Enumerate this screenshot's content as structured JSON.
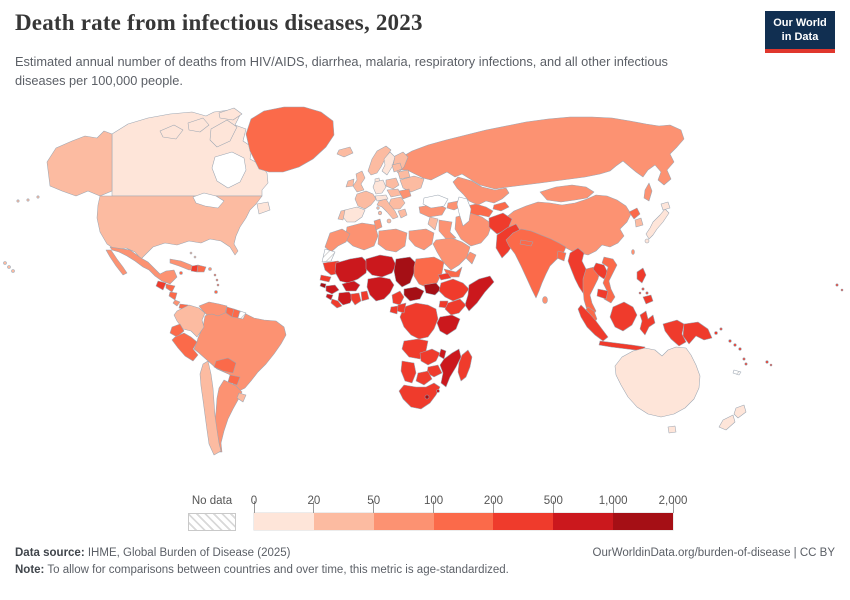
{
  "header": {
    "title": "Death rate from infectious diseases, 2023",
    "subtitle": "Estimated annual number of deaths from HIV/AIDS, diarrhea, malaria, respiratory infections, and all other infectious diseases per 100,000 people.",
    "logo": {
      "line1": "Our World",
      "line2": "in Data",
      "bg_color": "#112f51",
      "accent_color": "#e0372d"
    }
  },
  "legend": {
    "no_data_label": "No data",
    "tick_labels": [
      "0",
      "20",
      "50",
      "100",
      "200",
      "500",
      "1,000",
      "2,000"
    ],
    "colors": [
      "#fee5d9",
      "#fcbba1",
      "#fc9272",
      "#fb6a4a",
      "#ef3b2c",
      "#cb181d",
      "#a50f15"
    ]
  },
  "footer": {
    "source_label": "Data source:",
    "source_text": " IHME, Global Burden of Disease (2025)",
    "link_text": "OurWorldinData.org/burden-of-disease | CC BY",
    "note_label": "Note:",
    "note_text": " To allow for comparisons between countries and over time, this metric is age-standardized."
  },
  "chart_data": {
    "type": "heatmap",
    "subtype": "choropleth-world-map",
    "title": "Death rate from infectious diseases, 2023",
    "year": "2023",
    "unit": "deaths per 100,000 people",
    "legend_position": "bottom",
    "scale": {
      "bins": [
        {
          "range": "0–20",
          "color": "#fee5d9"
        },
        {
          "range": "20–50",
          "color": "#fcbba1"
        },
        {
          "range": "50–100",
          "color": "#fc9272"
        },
        {
          "range": "100–200",
          "color": "#fb6a4a"
        },
        {
          "range": "200–500",
          "color": "#ef3b2c"
        },
        {
          "range": "500–1,000",
          "color": "#cb181d"
        },
        {
          "range": "1,000–2,000",
          "color": "#a50f15"
        }
      ],
      "no_data": "hatched"
    },
    "regions": [
      {
        "id": "canada",
        "name": "Canada",
        "bin": 0
      },
      {
        "id": "usa",
        "name": "United States",
        "bin": 1
      },
      {
        "id": "greenland",
        "name": "Greenland",
        "bin": 3
      },
      {
        "id": "mexico",
        "name": "Mexico",
        "bin": 2
      },
      {
        "id": "guatemala",
        "name": "Guatemala",
        "bin": 4
      },
      {
        "id": "honduras",
        "name": "Honduras",
        "bin": 3
      },
      {
        "id": "nicaragua",
        "name": "Nicaragua",
        "bin": 3
      },
      {
        "id": "costa-rica",
        "name": "Costa Rica",
        "bin": 2
      },
      {
        "id": "panama",
        "name": "Panama",
        "bin": 3
      },
      {
        "id": "cuba",
        "name": "Cuba",
        "bin": 2
      },
      {
        "id": "jamaica",
        "name": "Jamaica",
        "bin": 3
      },
      {
        "id": "haiti",
        "name": "Haiti",
        "bin": 4
      },
      {
        "id": "dominican-republic",
        "name": "Dominican Republic",
        "bin": 3
      },
      {
        "id": "puerto-rico",
        "name": "Puerto Rico",
        "bin": 2
      },
      {
        "id": "bahamas",
        "name": "Bahamas",
        "bin": 1
      },
      {
        "id": "lesser-antilles",
        "name": "Lesser Antilles",
        "bin": 3
      },
      {
        "id": "trinidad",
        "name": "Trinidad and Tobago",
        "bin": 3
      },
      {
        "id": "colombia",
        "name": "Colombia",
        "bin": 1
      },
      {
        "id": "venezuela",
        "name": "Venezuela",
        "bin": 2
      },
      {
        "id": "guyana",
        "name": "Guyana",
        "bin": 3
      },
      {
        "id": "suriname",
        "name": "Suriname",
        "bin": 3
      },
      {
        "id": "french-guiana",
        "name": "French Guiana",
        "bin": -1
      },
      {
        "id": "ecuador",
        "name": "Ecuador",
        "bin": 3
      },
      {
        "id": "peru",
        "name": "Peru",
        "bin": 3
      },
      {
        "id": "brazil",
        "name": "Brazil",
        "bin": 2
      },
      {
        "id": "bolivia",
        "name": "Bolivia",
        "bin": 3
      },
      {
        "id": "paraguay",
        "name": "Paraguay",
        "bin": 3
      },
      {
        "id": "chile",
        "name": "Chile",
        "bin": 1
      },
      {
        "id": "argentina",
        "name": "Argentina",
        "bin": 2
      },
      {
        "id": "uruguay",
        "name": "Uruguay",
        "bin": 1
      },
      {
        "id": "iceland",
        "name": "Iceland",
        "bin": 1
      },
      {
        "id": "norway",
        "name": "Norway",
        "bin": 1
      },
      {
        "id": "sweden",
        "name": "Sweden",
        "bin": 0
      },
      {
        "id": "finland",
        "name": "Finland",
        "bin": 1
      },
      {
        "id": "denmark",
        "name": "Denmark",
        "bin": 0
      },
      {
        "id": "uk",
        "name": "United Kingdom",
        "bin": 1
      },
      {
        "id": "ireland",
        "name": "Ireland",
        "bin": 1
      },
      {
        "id": "france",
        "name": "France",
        "bin": 1
      },
      {
        "id": "spain",
        "name": "Spain",
        "bin": 0
      },
      {
        "id": "portugal",
        "name": "Portugal",
        "bin": 1
      },
      {
        "id": "germany",
        "name": "Germany",
        "bin": 0
      },
      {
        "id": "alpine",
        "name": "Switzerland and Austria",
        "bin": 0
      },
      {
        "id": "italy",
        "name": "Italy",
        "bin": 1
      },
      {
        "id": "poland",
        "name": "Poland",
        "bin": 1
      },
      {
        "id": "central-europe",
        "name": "Central Europe",
        "bin": 1
      },
      {
        "id": "balkans",
        "name": "Balkans",
        "bin": 1
      },
      {
        "id": "greece",
        "name": "Greece",
        "bin": 1
      },
      {
        "id": "romania",
        "name": "Romania",
        "bin": 2
      },
      {
        "id": "ukraine",
        "name": "Ukraine",
        "bin": 1
      },
      {
        "id": "belarus",
        "name": "Belarus",
        "bin": 1
      },
      {
        "id": "baltics",
        "name": "Baltic states",
        "bin": 1
      },
      {
        "id": "russia",
        "name": "Russia",
        "bin": 2
      },
      {
        "id": "kazakhstan",
        "name": "Kazakhstan",
        "bin": 2
      },
      {
        "id": "central-asia",
        "name": "Turkmenistan and Uzbekistan",
        "bin": 3
      },
      {
        "id": "kyrgyz-tajik",
        "name": "Kyrgyzstan and Tajikistan",
        "bin": 3
      },
      {
        "id": "caucasus",
        "name": "Caucasus",
        "bin": 2
      },
      {
        "id": "turkey",
        "name": "Turkey",
        "bin": 2
      },
      {
        "id": "levant",
        "name": "Levant",
        "bin": 1
      },
      {
        "id": "iraq",
        "name": "Iraq",
        "bin": 2
      },
      {
        "id": "iran",
        "name": "Iran",
        "bin": 2
      },
      {
        "id": "saudi-arabia",
        "name": "Saudi Arabia",
        "bin": 2
      },
      {
        "id": "yemen",
        "name": "Yemen",
        "bin": 3
      },
      {
        "id": "oman",
        "name": "Oman",
        "bin": 2
      },
      {
        "id": "afghanistan",
        "name": "Afghanistan",
        "bin": 4
      },
      {
        "id": "pakistan",
        "name": "Pakistan",
        "bin": 4
      },
      {
        "id": "india",
        "name": "India",
        "bin": 3
      },
      {
        "id": "nepal",
        "name": "Nepal",
        "bin": 3
      },
      {
        "id": "bangladesh",
        "name": "Bangladesh",
        "bin": 3
      },
      {
        "id": "sri-lanka",
        "name": "Sri Lanka",
        "bin": 2
      },
      {
        "id": "china",
        "name": "China",
        "bin": 2
      },
      {
        "id": "mongolia",
        "name": "Mongolia",
        "bin": 2
      },
      {
        "id": "north-korea",
        "name": "North Korea",
        "bin": 3
      },
      {
        "id": "south-korea",
        "name": "South Korea",
        "bin": 1
      },
      {
        "id": "japan",
        "name": "Japan",
        "bin": 0
      },
      {
        "id": "taiwan",
        "name": "Taiwan",
        "bin": 2
      },
      {
        "id": "myanmar",
        "name": "Myanmar",
        "bin": 4
      },
      {
        "id": "thailand",
        "name": "Thailand",
        "bin": 3
      },
      {
        "id": "laos",
        "name": "Laos",
        "bin": 4
      },
      {
        "id": "vietnam",
        "name": "Vietnam",
        "bin": 3
      },
      {
        "id": "cambodia",
        "name": "Cambodia",
        "bin": 4
      },
      {
        "id": "malaysia",
        "name": "Malaysia",
        "bin": 3
      },
      {
        "id": "indonesia",
        "name": "Indonesia",
        "bin": 4
      },
      {
        "id": "philippines",
        "name": "Philippines",
        "bin": 4
      },
      {
        "id": "png",
        "name": "Papua New Guinea",
        "bin": 4
      },
      {
        "id": "timor",
        "name": "Timor-Leste",
        "bin": 3
      },
      {
        "id": "solomon-islands",
        "name": "Solomon Islands",
        "bin": 4
      },
      {
        "id": "vanuatu",
        "name": "Vanuatu",
        "bin": 4
      },
      {
        "id": "fiji",
        "name": "Fiji",
        "bin": 4
      },
      {
        "id": "new-caledonia",
        "name": "New Caledonia",
        "bin": -1
      },
      {
        "id": "pacific-islands",
        "name": "Pacific islands",
        "bin": 4
      },
      {
        "id": "morocco",
        "name": "Morocco",
        "bin": 2
      },
      {
        "id": "western-sahara",
        "name": "Western Sahara",
        "bin": -1
      },
      {
        "id": "algeria",
        "name": "Algeria",
        "bin": 2
      },
      {
        "id": "tunisia",
        "name": "Tunisia",
        "bin": 2
      },
      {
        "id": "libya",
        "name": "Libya",
        "bin": 2
      },
      {
        "id": "egypt",
        "name": "Egypt",
        "bin": 2
      },
      {
        "id": "mauritania",
        "name": "Mauritania",
        "bin": 4
      },
      {
        "id": "senegal",
        "name": "Senegal",
        "bin": 4
      },
      {
        "id": "guinea-bissau",
        "name": "Guinea-Bissau",
        "bin": 6
      },
      {
        "id": "guinea",
        "name": "Guinea",
        "bin": 5
      },
      {
        "id": "sierra-leone",
        "name": "Sierra Leone",
        "bin": 5
      },
      {
        "id": "liberia",
        "name": "Liberia",
        "bin": 4
      },
      {
        "id": "cote-divoire",
        "name": "Cote d'Ivoire",
        "bin": 5
      },
      {
        "id": "ghana",
        "name": "Ghana",
        "bin": 4
      },
      {
        "id": "togo-benin",
        "name": "Togo and Benin",
        "bin": 4
      },
      {
        "id": "burkina-faso",
        "name": "Burkina Faso",
        "bin": 5
      },
      {
        "id": "mali",
        "name": "Mali",
        "bin": 5
      },
      {
        "id": "niger",
        "name": "Niger",
        "bin": 5
      },
      {
        "id": "nigeria",
        "name": "Nigeria",
        "bin": 5
      },
      {
        "id": "chad",
        "name": "Chad",
        "bin": 6
      },
      {
        "id": "sudan",
        "name": "Sudan",
        "bin": 3
      },
      {
        "id": "eritrea",
        "name": "Eritrea",
        "bin": 4
      },
      {
        "id": "djibouti",
        "name": "Djibouti",
        "bin": 4
      },
      {
        "id": "ethiopia",
        "name": "Ethiopia",
        "bin": 4
      },
      {
        "id": "somalia",
        "name": "Somalia",
        "bin": 5
      },
      {
        "id": "cameroon",
        "name": "Cameroon",
        "bin": 4
      },
      {
        "id": "car",
        "name": "Central African Republic",
        "bin": 6
      },
      {
        "id": "south-sudan",
        "name": "South Sudan",
        "bin": 6
      },
      {
        "id": "uganda",
        "name": "Uganda",
        "bin": 4
      },
      {
        "id": "kenya",
        "name": "Kenya",
        "bin": 4
      },
      {
        "id": "drc",
        "name": "Democratic Republic of Congo",
        "bin": 4
      },
      {
        "id": "congo",
        "name": "Congo",
        "bin": 4
      },
      {
        "id": "gabon",
        "name": "Gabon",
        "bin": 4
      },
      {
        "id": "tanzania",
        "name": "Tanzania",
        "bin": 5
      },
      {
        "id": "angola",
        "name": "Angola",
        "bin": 4
      },
      {
        "id": "zambia",
        "name": "Zambia",
        "bin": 4
      },
      {
        "id": "malawi",
        "name": "Malawi",
        "bin": 5
      },
      {
        "id": "mozambique",
        "name": "Mozambique",
        "bin": 5
      },
      {
        "id": "zimbabwe",
        "name": "Zimbabwe",
        "bin": 4
      },
      {
        "id": "botswana",
        "name": "Botswana",
        "bin": 4
      },
      {
        "id": "namibia",
        "name": "Namibia",
        "bin": 4
      },
      {
        "id": "south-africa",
        "name": "South Africa",
        "bin": 4
      },
      {
        "id": "lesotho",
        "name": "Lesotho",
        "bin": 6
      },
      {
        "id": "eswatini",
        "name": "Eswatini",
        "bin": 5
      },
      {
        "id": "madagascar",
        "name": "Madagascar",
        "bin": 4
      },
      {
        "id": "australia",
        "name": "Australia",
        "bin": 0
      },
      {
        "id": "new-zealand",
        "name": "New Zealand",
        "bin": 0
      }
    ]
  }
}
